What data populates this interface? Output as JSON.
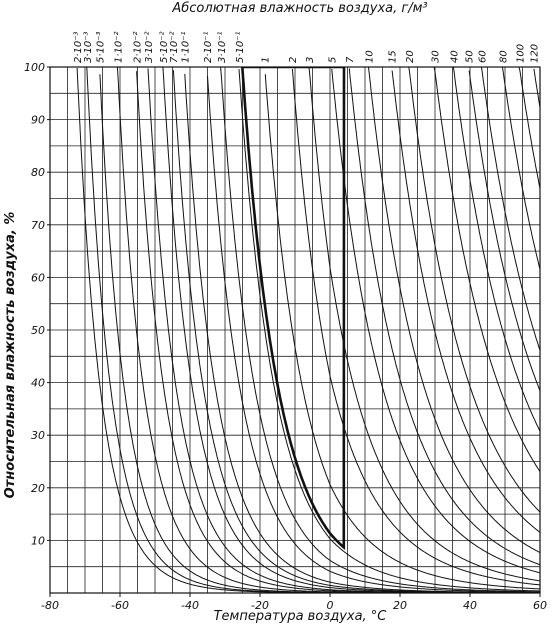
{
  "chart_data": {
    "type": "nomogram",
    "title": "Абсолютная влажность воздуха, г/м³",
    "x_label": "Температура воздуха, °С",
    "y_label": "Относительная влажность воздуха, %",
    "xlim": [
      -80,
      60
    ],
    "ylim": [
      0,
      100
    ],
    "xticks": [
      -80,
      -60,
      -40,
      -20,
      0,
      20,
      40,
      60
    ],
    "yticks": [
      10,
      20,
      30,
      40,
      50,
      60,
      70,
      80,
      90,
      100
    ],
    "xgrid": [
      -80,
      -75,
      -70,
      -65,
      -60,
      -55,
      -50,
      -45,
      -40,
      -35,
      -30,
      -25,
      -20,
      -15,
      -10,
      -5,
      0,
      5,
      10,
      15,
      20,
      25,
      30,
      35,
      40,
      45,
      50,
      55,
      60
    ],
    "ygrid": [
      0,
      5,
      10,
      15,
      20,
      25,
      30,
      35,
      40,
      45,
      50,
      55,
      60,
      65,
      70,
      75,
      80,
      85,
      90,
      95,
      100
    ],
    "color": "#111111",
    "curves": [
      {
        "label": "2·10⁻³",
        "value": 0.002
      },
      {
        "label": "3·10⁻³",
        "value": 0.003
      },
      {
        "label": "5·10⁻³",
        "value": 0.005
      },
      {
        "label": "1·10⁻²",
        "value": 0.01
      },
      {
        "label": "2·10⁻²",
        "value": 0.02
      },
      {
        "label": "3·10⁻²",
        "value": 0.03
      },
      {
        "label": "5·10⁻²",
        "value": 0.05
      },
      {
        "label": "7·10⁻²",
        "value": 0.07
      },
      {
        "label": "1·10⁻¹",
        "value": 0.1
      },
      {
        "label": "2·10⁻¹",
        "value": 0.2
      },
      {
        "label": "3·10⁻¹",
        "value": 0.3
      },
      {
        "label": "5·10⁻¹",
        "value": 0.5
      },
      {
        "label": "1",
        "value": 1
      },
      {
        "label": "2",
        "value": 2
      },
      {
        "label": "3",
        "value": 3
      },
      {
        "label": "5",
        "value": 5
      },
      {
        "label": "7",
        "value": 7
      },
      {
        "label": "10",
        "value": 10
      },
      {
        "label": "15",
        "value": 15
      },
      {
        "label": "20",
        "value": 20
      },
      {
        "label": "30",
        "value": 30
      },
      {
        "label": "40",
        "value": 40
      },
      {
        "label": "50",
        "value": 50
      },
      {
        "label": "60",
        "value": 60
      },
      {
        "label": "80",
        "value": 80
      },
      {
        "label": "100",
        "value": 100
      },
      {
        "label": "120",
        "value": 120
      }
    ],
    "highlight": {
      "value": 0.55,
      "x": 4
    }
  }
}
